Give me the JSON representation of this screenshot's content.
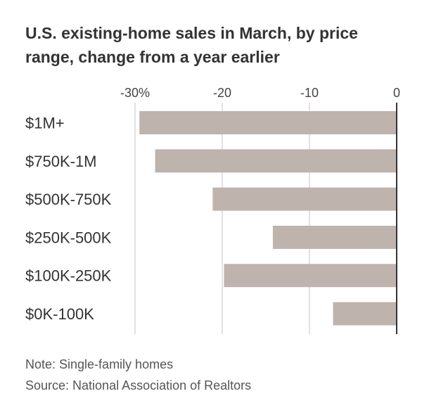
{
  "title": "U.S. existing-home sales in March, by price range, change from a year earlier",
  "note": "Note: Single-family homes",
  "source": "Source: National Association of Realtors",
  "colors": {
    "bar": "#bfb3ae",
    "grid": "#d9d9d9",
    "zero_line": "#333333"
  },
  "chart_data": {
    "type": "bar",
    "orientation": "horizontal",
    "title": "U.S. existing-home sales in March, by price range, change from a year earlier",
    "categories": [
      "$1M+",
      "$750K-1M",
      "$500K-750K",
      "$250K-500K",
      "$100K-250K",
      "$0K-100K"
    ],
    "values": [
      -29.5,
      -27.7,
      -21.1,
      -14.2,
      -19.8,
      -7.3
    ],
    "xlim": [
      -30,
      0
    ],
    "ticks": [
      -30,
      -20,
      -10,
      0
    ],
    "tick_labels": [
      "-30%",
      "-20",
      "-10",
      "0"
    ],
    "grid": true,
    "legend": false
  }
}
